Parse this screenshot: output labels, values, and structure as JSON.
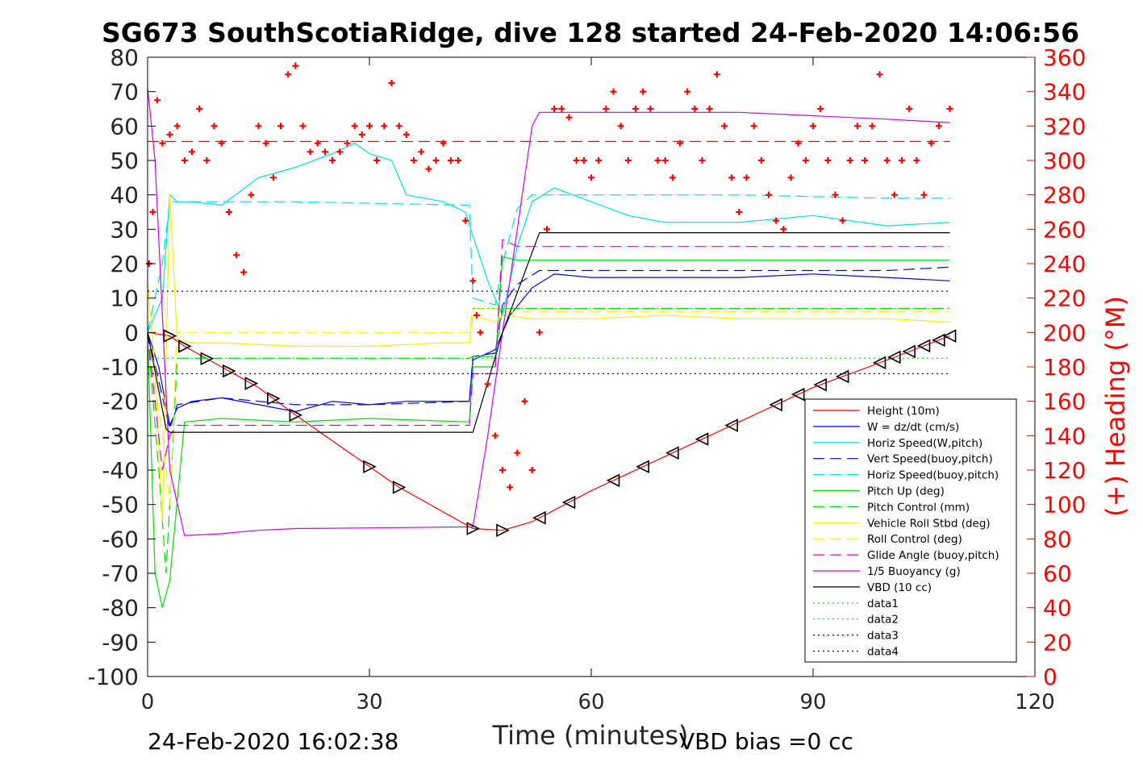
{
  "chart_data": {
    "type": "line",
    "title": "SG673 SouthScotiaRidge, dive 128 started 24-Feb-2020 14:06:56",
    "xlabel": "Time (minutes)",
    "ylabel_right": "(+) Heading (°M)",
    "footer_left": "24-Feb-2020 16:02:38",
    "footer_right": "VBD bias =0 cc",
    "xlim": [
      0,
      120
    ],
    "ylim": [
      -100,
      80
    ],
    "y2lim": [
      0,
      360
    ],
    "xticks": [
      "0",
      "30",
      "60",
      "90",
      "120"
    ],
    "yticks": [
      "80",
      "70",
      "60",
      "50",
      "40",
      "30",
      "20",
      "10",
      "0",
      "-10",
      "-20",
      "-30",
      "-40",
      "-50",
      "-60",
      "-70",
      "-80",
      "-90",
      "-100"
    ],
    "y2ticks": [
      "360",
      "340",
      "320",
      "300",
      "280",
      "260",
      "240",
      "220",
      "200",
      "180",
      "160",
      "140",
      "120",
      "100",
      "80",
      "60",
      "40",
      "20",
      "0"
    ],
    "grid": false,
    "legend_position": "bottom-right",
    "colors": {
      "red": "#ff0000",
      "blue": "#0000ff",
      "cyan": "#00e0e0",
      "green": "#00dd00",
      "yellow": "#f2f200",
      "magenta": "#dd00dd",
      "purple": "#cc00ff",
      "black": "#000000",
      "navy": "#000080"
    },
    "legend": [
      {
        "label": "Height (10m)",
        "color": "#ff0000",
        "dash": "solid"
      },
      {
        "label": "W = dz/dt (cm/s)",
        "color": "#0000ff",
        "dash": "solid"
      },
      {
        "label": "Horiz Speed(W,pitch)",
        "color": "#00e0e0",
        "dash": "solid"
      },
      {
        "label": "Vert Speed(buoy,pitch)",
        "color": "#0000ff",
        "dash": "dashed"
      },
      {
        "label": "Horiz Speed(buoy,pitch)",
        "color": "#00e0e0",
        "dash": "dashed"
      },
      {
        "label": "Pitch Up (deg)",
        "color": "#00dd00",
        "dash": "solid"
      },
      {
        "label": "Pitch Control (mm)",
        "color": "#00dd00",
        "dash": "dashed"
      },
      {
        "label": "Vehicle Roll Stbd (deg)",
        "color": "#f2f200",
        "dash": "solid"
      },
      {
        "label": "Roll Control (deg)",
        "color": "#f2f200",
        "dash": "dashed"
      },
      {
        "label": "Glide Angle (buoy,pitch)",
        "color": "#dd00dd",
        "dash": "dashed"
      },
      {
        "label": "1/5 Buoyancy (g)",
        "color": "#cc00ff",
        "dash": "solid"
      },
      {
        "label": "VBD (10 cc)",
        "color": "#000000",
        "dash": "solid"
      },
      {
        "label": "data1",
        "color": "#00dd00",
        "dash": "dotted"
      },
      {
        "label": "data2",
        "color": "#00dd00",
        "dash": "dotted"
      },
      {
        "label": "data3",
        "color": "#000080",
        "dash": "dotted"
      },
      {
        "label": "data4",
        "color": "#000080",
        "dash": "dotted"
      }
    ],
    "series": [
      {
        "name": "Height (10m)",
        "color": "#ff0000",
        "dash": "solid",
        "axis": "left",
        "x": [
          0,
          3,
          5,
          10,
          15,
          20,
          30,
          34,
          44,
          48,
          52,
          60,
          70,
          80,
          90,
          100,
          108.5
        ],
        "y": [
          0,
          -1,
          -4,
          -10,
          -16,
          -24,
          -39,
          -45,
          -57,
          -57.5,
          -55,
          -46,
          -36,
          -26,
          -16,
          -8,
          -1
        ]
      },
      {
        "name": "W = dz/dt (cm/s)",
        "color": "#0000ff",
        "dash": "solid",
        "axis": "left",
        "x": [
          0,
          1.5,
          3,
          4,
          6,
          10,
          15,
          20,
          25,
          30,
          35,
          40,
          43.5,
          44,
          47,
          49,
          52,
          55,
          60,
          70,
          80,
          90,
          100,
          108.5
        ],
        "y": [
          0,
          -10,
          -27,
          -22,
          -20,
          -19,
          -21,
          -23,
          -20,
          -21,
          -20,
          -20,
          -20,
          -8,
          -5,
          5,
          13,
          17,
          16,
          16,
          16,
          17,
          16,
          15
        ]
      },
      {
        "name": "Horiz Speed(W,pitch)",
        "color": "#00e0e0",
        "dash": "solid",
        "axis": "left",
        "x": [
          0,
          2,
          3,
          4,
          6,
          10,
          15,
          20,
          25,
          28,
          30,
          33,
          35,
          40,
          43,
          44,
          46,
          47,
          48,
          50,
          52,
          55,
          60,
          65,
          70,
          80,
          90,
          100,
          108.5
        ],
        "y": [
          0,
          10,
          40,
          38,
          38,
          37,
          45,
          48,
          52,
          55,
          52,
          50,
          40,
          38,
          35,
          28,
          15,
          10,
          5,
          25,
          38,
          42,
          38,
          34,
          32,
          32,
          34,
          31,
          32
        ]
      },
      {
        "name": "Vert Speed(buoy,pitch)",
        "color": "#0000ff",
        "dash": "dashed",
        "axis": "left",
        "x": [
          0,
          3,
          4,
          10,
          20,
          30,
          43.5,
          44,
          47,
          48,
          50,
          53,
          60,
          80,
          100,
          108.5
        ],
        "y": [
          0,
          -28,
          -21,
          -19,
          -21,
          -21,
          -20,
          -7,
          -6,
          8,
          14,
          18,
          18,
          18,
          18,
          19
        ]
      },
      {
        "name": "Horiz Speed(buoy,pitch)",
        "color": "#00e0e0",
        "dash": "dashed",
        "axis": "left",
        "x": [
          0,
          2,
          3,
          5,
          10,
          20,
          43.5,
          44,
          47,
          48,
          50,
          52,
          60,
          80,
          100,
          108.5
        ],
        "y": [
          0,
          20,
          38,
          38,
          38,
          38,
          37,
          10,
          8,
          20,
          36,
          40,
          40,
          40,
          39,
          39
        ]
      },
      {
        "name": "Pitch Up (deg)",
        "color": "#00dd00",
        "dash": "solid",
        "axis": "left",
        "x": [
          0,
          1,
          2,
          3,
          5,
          10,
          20,
          30,
          43.5,
          44,
          47,
          48,
          50,
          60,
          80,
          100,
          108.5
        ],
        "y": [
          0,
          -70,
          -80,
          -72,
          -26,
          -25,
          -26,
          -25,
          -26,
          -10,
          -10,
          22,
          21,
          21,
          21,
          21,
          21
        ]
      },
      {
        "name": "Pitch Control (mm)",
        "color": "#00dd00",
        "dash": "dashed",
        "axis": "left",
        "x": [
          0,
          1.5,
          2.5,
          4,
          10,
          30,
          43.5,
          44,
          47,
          48,
          60,
          108.5
        ],
        "y": [
          0,
          -40,
          -70,
          -7.5,
          -7.5,
          -7.5,
          -7.5,
          -7,
          -7,
          7,
          7,
          7
        ]
      },
      {
        "name": "Vehicle Roll Stbd (deg)",
        "color": "#f2f200",
        "dash": "solid",
        "axis": "left",
        "x": [
          0,
          1,
          2,
          3,
          4,
          6,
          10,
          20,
          30,
          40,
          43.5,
          44,
          47,
          48,
          52,
          60,
          70,
          80,
          90,
          100,
          108.5
        ],
        "y": [
          15,
          -10,
          -55,
          40,
          -2,
          -3,
          -3,
          -4,
          -4,
          -3,
          -3,
          5,
          3,
          5,
          4,
          4,
          5,
          4,
          4,
          4,
          3
        ]
      },
      {
        "name": "Roll Control (deg)",
        "color": "#f2f200",
        "dash": "dashed",
        "axis": "left",
        "x": [
          0,
          2,
          3,
          4,
          10,
          30,
          43.5,
          44,
          47,
          48,
          60,
          108.5
        ],
        "y": [
          0,
          -30,
          -50,
          0,
          0,
          0,
          0,
          7,
          7,
          6,
          6,
          6
        ]
      },
      {
        "name": "Glide Angle (buoy,pitch)",
        "color": "#dd00dd",
        "dash": "dashed",
        "axis": "left",
        "x": [
          0,
          2,
          3,
          4,
          10,
          30,
          43.5,
          44,
          47,
          48,
          50,
          60,
          80,
          100,
          108.5
        ],
        "y": [
          0,
          -40,
          -30,
          -27,
          -27,
          -27,
          -27,
          -12,
          -12,
          27,
          25,
          25,
          25,
          25,
          25
        ]
      },
      {
        "name": "1/5 Buoyancy (g)",
        "color": "#cc00ff",
        "dash": "solid",
        "axis": "left",
        "x": [
          0,
          1,
          2,
          3,
          5,
          10,
          15,
          20,
          30,
          44,
          46,
          48,
          50,
          52,
          53,
          60,
          80,
          100,
          108.5
        ],
        "y": [
          71,
          50,
          5,
          -40,
          -59,
          -58.5,
          -57.5,
          -57,
          -56.8,
          -56.5,
          -30,
          0,
          30,
          60,
          64,
          64,
          64,
          62,
          61
        ]
      },
      {
        "name": "VBD (10 cc)",
        "color": "#000000",
        "dash": "solid",
        "axis": "left",
        "x": [
          0,
          2.5,
          3,
          5,
          20,
          40,
          44,
          48,
          53,
          60,
          80,
          100,
          108.5
        ],
        "y": [
          0,
          -28,
          -29,
          -29,
          -29,
          -29,
          -29,
          0,
          29,
          29,
          29,
          29,
          29
        ]
      },
      {
        "name": "data1",
        "color": "#00dd00",
        "dash": "dotted",
        "axis": "left",
        "x": [
          0,
          108.5
        ],
        "y": [
          -7.5,
          -7.5
        ]
      },
      {
        "name": "data2",
        "color": "#00dd00",
        "dash": "dotted",
        "axis": "left",
        "x": [
          44,
          108.5
        ],
        "y": [
          7,
          7
        ]
      },
      {
        "name": "data3",
        "color": "#000080",
        "dash": "dotted",
        "axis": "left",
        "x": [
          0,
          108.5
        ],
        "y": [
          12,
          12
        ]
      },
      {
        "name": "data4",
        "color": "#000080",
        "dash": "dotted",
        "axis": "left",
        "x": [
          0,
          108.5
        ],
        "y": [
          -12,
          -12
        ]
      },
      {
        "name": "Heading reference",
        "color": "#ff0000",
        "dash": "dashed",
        "axis": "right",
        "x": [
          0,
          108.5
        ],
        "y": [
          311,
          311
        ]
      }
    ],
    "heading": {
      "marker": "+",
      "color": "#ff0000",
      "axis": "right",
      "x": [
        0.2,
        0.7,
        1.3,
        2,
        3,
        4,
        5,
        6,
        7,
        8,
        9,
        10,
        11,
        12,
        13,
        14,
        15,
        16,
        17,
        18,
        19,
        20,
        21,
        22,
        23,
        24,
        25,
        26,
        27,
        28,
        29,
        30,
        31,
        32,
        33,
        34,
        35,
        36,
        37,
        38,
        39,
        40,
        41,
        42,
        43,
        44,
        44.5,
        45,
        46,
        47,
        48,
        49,
        50,
        51,
        52,
        53,
        54,
        55,
        56,
        57,
        58,
        59,
        60,
        61,
        62,
        63,
        64,
        65,
        66,
        67,
        68,
        69,
        70,
        71,
        72,
        73,
        74,
        75,
        76,
        77,
        78,
        79,
        80,
        81,
        82,
        83,
        84,
        85,
        86,
        87,
        88,
        89,
        90,
        91,
        92,
        93,
        94,
        95,
        96,
        97,
        98,
        99,
        100,
        101,
        102,
        103,
        104,
        105,
        106,
        107,
        108.5
      ],
      "y": [
        240,
        270,
        335,
        310,
        315,
        320,
        300,
        305,
        330,
        300,
        320,
        310,
        270,
        245,
        235,
        280,
        320,
        310,
        290,
        320,
        350,
        355,
        320,
        305,
        310,
        305,
        300,
        305,
        310,
        320,
        315,
        320,
        300,
        320,
        345,
        320,
        315,
        300,
        305,
        295,
        300,
        310,
        300,
        300,
        265,
        230,
        210,
        200,
        170,
        140,
        120,
        110,
        130,
        160,
        120,
        200,
        260,
        330,
        330,
        325,
        300,
        300,
        290,
        300,
        330,
        340,
        320,
        300,
        330,
        340,
        330,
        300,
        300,
        290,
        310,
        340,
        330,
        300,
        330,
        350,
        320,
        290,
        270,
        290,
        320,
        300,
        280,
        265,
        260,
        290,
        310,
        300,
        320,
        330,
        300,
        280,
        265,
        300,
        320,
        300,
        320,
        350,
        300,
        280,
        300,
        330,
        300,
        280,
        310,
        320,
        330
      ]
    }
  }
}
